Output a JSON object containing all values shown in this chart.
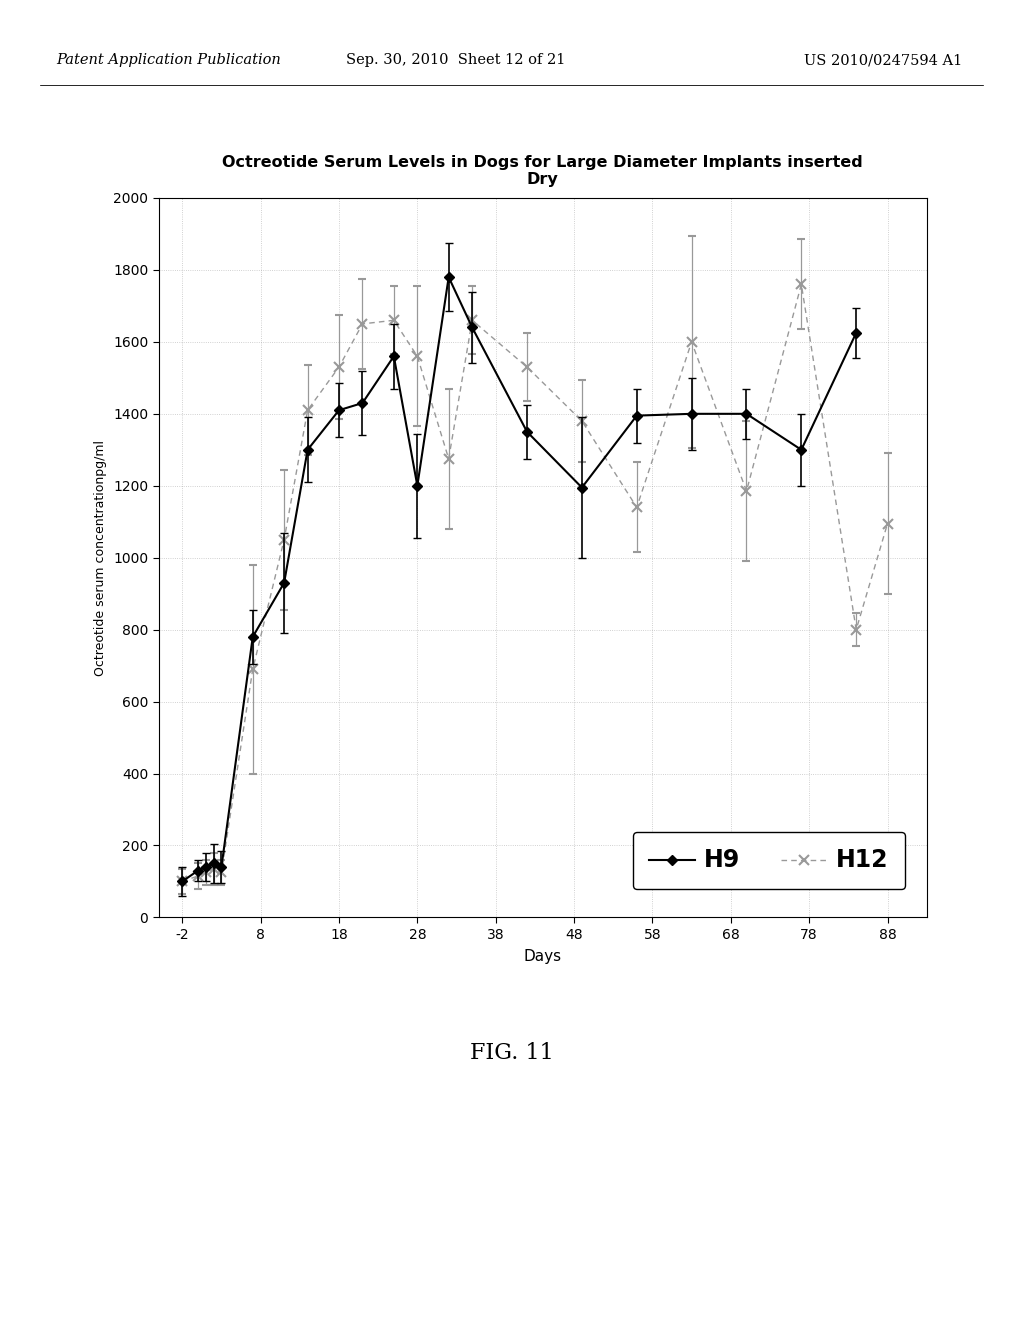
{
  "title": "Octreotide Serum Levels in Dogs for Large Diameter Implants inserted\nDry",
  "xlabel": "Days",
  "ylabel": "Octreotide serum concentrationpg/ml",
  "xlim": [
    -5,
    93
  ],
  "ylim": [
    0,
    2000
  ],
  "yticks": [
    0,
    200,
    400,
    600,
    800,
    1000,
    1200,
    1400,
    1600,
    1800,
    2000
  ],
  "xticks": [
    -2,
    8,
    18,
    28,
    38,
    48,
    58,
    68,
    78,
    88
  ],
  "H9_x": [
    -2,
    0,
    1,
    2,
    3,
    7,
    11,
    14,
    18,
    21,
    25,
    28,
    32,
    35,
    42,
    49,
    56,
    63,
    70,
    77,
    84
  ],
  "H9_y": [
    100,
    130,
    140,
    150,
    140,
    780,
    930,
    1300,
    1410,
    1430,
    1560,
    1200,
    1780,
    1640,
    1350,
    1195,
    1395,
    1400,
    1400,
    1300,
    1625
  ],
  "H9_yerr": [
    40,
    30,
    40,
    55,
    45,
    75,
    140,
    90,
    75,
    90,
    90,
    145,
    95,
    100,
    75,
    195,
    75,
    100,
    70,
    100,
    70
  ],
  "H12_x": [
    -2,
    0,
    1,
    2,
    3,
    7,
    11,
    14,
    18,
    21,
    25,
    28,
    32,
    35,
    42,
    49,
    56,
    63,
    70,
    77,
    84,
    88
  ],
  "H12_y": [
    100,
    115,
    125,
    135,
    125,
    690,
    1050,
    1410,
    1530,
    1650,
    1660,
    1560,
    1275,
    1660,
    1530,
    1380,
    1140,
    1600,
    1185,
    1760,
    800,
    1095
  ],
  "H12_yerr": [
    35,
    35,
    35,
    45,
    35,
    290,
    195,
    125,
    145,
    125,
    95,
    195,
    195,
    95,
    95,
    115,
    125,
    295,
    195,
    125,
    45,
    195
  ],
  "background_color": "#ffffff",
  "grid_color": "#999999",
  "H9_color": "#000000",
  "H12_color": "#999999",
  "fig_caption": "FIG. 11",
  "header_left": "Patent Application Publication",
  "header_center": "Sep. 30, 2010  Sheet 12 of 21",
  "header_right": "US 2010/0247594 A1"
}
